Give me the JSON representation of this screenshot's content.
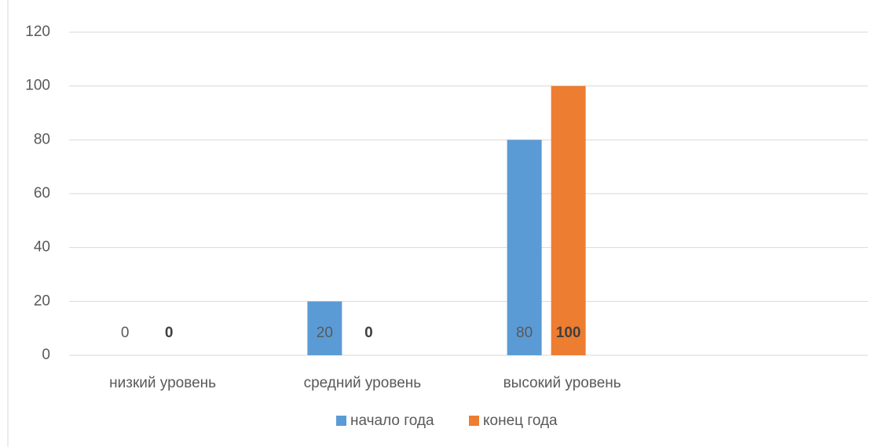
{
  "chart_data": {
    "type": "bar",
    "categories": [
      "низкий уровень",
      "средний уровень",
      "высокий уровень",
      null
    ],
    "series": [
      {
        "name": "начало года",
        "color": "#5b9bd5",
        "values": [
          0,
          20,
          80,
          null
        ]
      },
      {
        "name": "конец года",
        "color": "#ed7d31",
        "values": [
          0,
          0,
          100,
          null
        ]
      }
    ],
    "ylim": [
      0,
      120
    ],
    "yticks": [
      0,
      20,
      40,
      60,
      80,
      100,
      120
    ],
    "grid": true,
    "legend": "bottom"
  }
}
